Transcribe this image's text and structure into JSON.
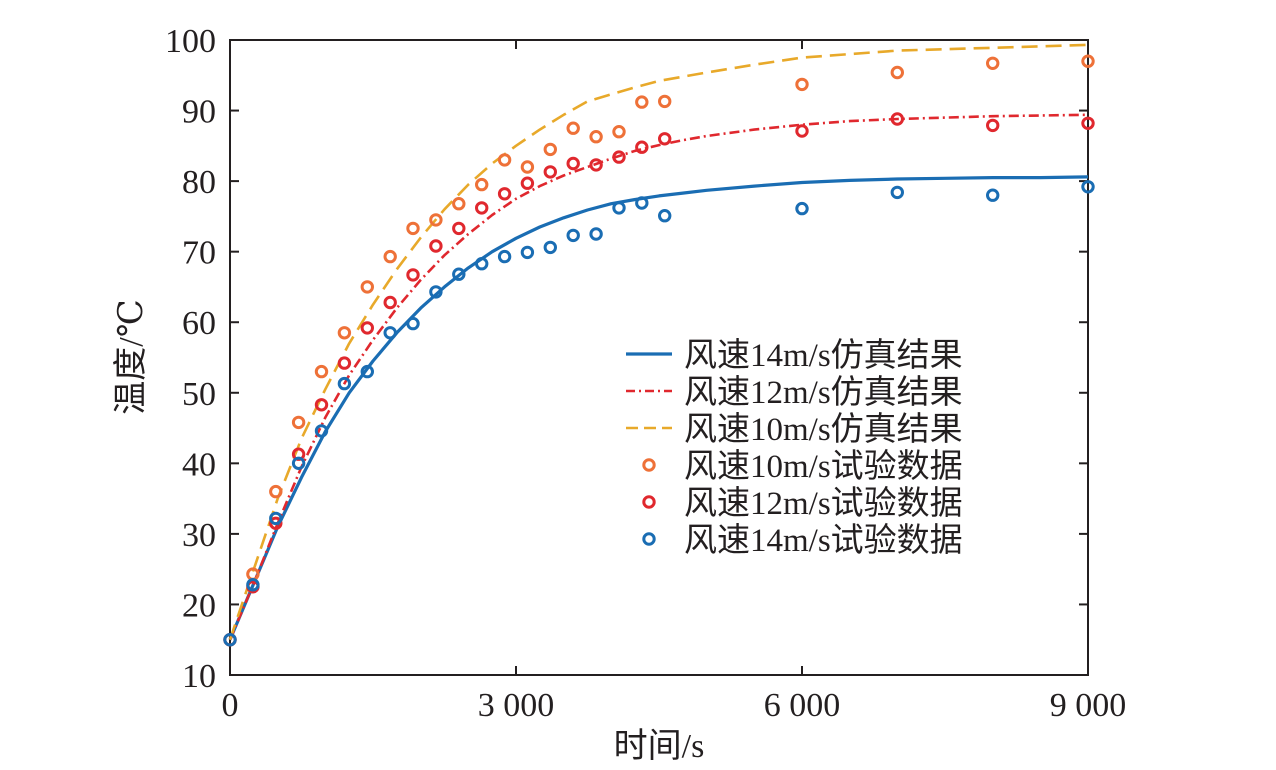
{
  "chart_data": {
    "type": "line",
    "xlabel": "时间/s",
    "ylabel": "温度/℃",
    "xlim": [
      0,
      9000
    ],
    "ylim": [
      10,
      100
    ],
    "xticks": [
      0,
      3000,
      6000,
      9000
    ],
    "xtick_labels": [
      "0",
      "3 000",
      "6 000",
      "9 000"
    ],
    "yticks": [
      10,
      20,
      30,
      40,
      50,
      60,
      70,
      80,
      90,
      100
    ],
    "ytick_labels": [
      "10",
      "20",
      "30",
      "40",
      "50",
      "60",
      "70",
      "80",
      "90",
      "100"
    ],
    "grid": false,
    "legend_position": "center-right",
    "series": [
      {
        "name": "风速14m/s仿真结果",
        "kind": "line",
        "style": "solid",
        "color": "#1a6db3",
        "x": [
          0,
          250,
          500,
          750,
          1000,
          1250,
          1500,
          1750,
          2000,
          2250,
          2500,
          2750,
          3000,
          3250,
          3500,
          3750,
          4000,
          4250,
          4500,
          4750,
          5000,
          5500,
          6000,
          6500,
          7000,
          7500,
          8000,
          8500,
          9000
        ],
        "y": [
          15.0,
          23.0,
          31.0,
          38.0,
          44.5,
          50.0,
          54.5,
          58.5,
          62.0,
          65.0,
          67.7,
          70.0,
          71.9,
          73.5,
          74.8,
          75.9,
          76.8,
          77.4,
          77.9,
          78.3,
          78.7,
          79.3,
          79.8,
          80.1,
          80.3,
          80.4,
          80.5,
          80.5,
          80.6
        ]
      },
      {
        "name": "风速12m/s仿真结果",
        "kind": "line",
        "style": "dashdot",
        "color": "#e0282e",
        "x": [
          0,
          250,
          500,
          750,
          1000,
          1250,
          1500,
          1750,
          2000,
          2250,
          2500,
          2750,
          3000,
          3250,
          3500,
          3750,
          4000,
          4250,
          4500,
          4750,
          5000,
          5500,
          6000,
          6500,
          7000,
          7500,
          8000,
          8500,
          9000
        ],
        "y": [
          15.0,
          23.0,
          31.5,
          39.5,
          46.5,
          52.5,
          57.5,
          62.0,
          66.0,
          69.5,
          72.5,
          75.2,
          77.5,
          79.3,
          80.8,
          82.0,
          83.2,
          84.3,
          85.1,
          85.8,
          86.4,
          87.3,
          88.0,
          88.5,
          88.8,
          89.0,
          89.2,
          89.3,
          89.4
        ]
      },
      {
        "name": "风速10m/s仿真结果",
        "kind": "line",
        "style": "dashed",
        "color": "#e8a92a",
        "x": [
          0,
          250,
          500,
          750,
          1000,
          1250,
          1500,
          1750,
          2000,
          2250,
          2500,
          2750,
          3000,
          3250,
          3500,
          3750,
          4000,
          4250,
          4500,
          4750,
          5000,
          5500,
          6000,
          6500,
          7000,
          7500,
          8000,
          8500,
          9000
        ],
        "y": [
          15.0,
          25.0,
          35.0,
          43.5,
          50.5,
          57.0,
          62.5,
          67.5,
          72.0,
          76.0,
          79.5,
          82.5,
          85.0,
          87.3,
          89.4,
          91.3,
          92.3,
          93.3,
          94.2,
          94.8,
          95.4,
          96.5,
          97.5,
          98.0,
          98.5,
          98.7,
          98.9,
          99.1,
          99.3
        ]
      },
      {
        "name": "风速10m/s试验数据",
        "kind": "scatter",
        "color": "#ee7138",
        "x": [
          0,
          240,
          480,
          720,
          960,
          1200,
          1440,
          1680,
          1920,
          2160,
          2400,
          2640,
          2880,
          3120,
          3360,
          3600,
          3840,
          4080,
          4320,
          4560,
          6000,
          7000,
          8000,
          9000
        ],
        "y": [
          15.0,
          24.3,
          36.0,
          45.8,
          53.0,
          58.5,
          65.0,
          69.3,
          73.3,
          74.5,
          76.8,
          79.5,
          83.0,
          82.0,
          84.5,
          87.5,
          86.3,
          87.0,
          91.2,
          91.3,
          93.7,
          95.4,
          96.7,
          97.0
        ]
      },
      {
        "name": "风速12m/s试验数据",
        "kind": "scatter",
        "color": "#e0282e",
        "x": [
          0,
          240,
          480,
          720,
          960,
          1200,
          1440,
          1680,
          1920,
          2160,
          2400,
          2640,
          2880,
          3120,
          3360,
          3600,
          3840,
          4080,
          4320,
          4560,
          6000,
          7000,
          8000,
          9000
        ],
        "y": [
          15.0,
          22.5,
          31.5,
          41.3,
          48.3,
          54.2,
          59.2,
          62.8,
          66.7,
          70.8,
          73.3,
          76.2,
          78.2,
          79.7,
          81.3,
          82.5,
          82.3,
          83.4,
          84.8,
          86.0,
          87.1,
          88.8,
          87.9,
          88.2
        ]
      },
      {
        "name": "风速14m/s试验数据",
        "kind": "scatter",
        "color": "#1a6db3",
        "x": [
          0,
          240,
          480,
          720,
          960,
          1200,
          1440,
          1680,
          1920,
          2160,
          2400,
          2640,
          2880,
          3120,
          3360,
          3600,
          3840,
          4080,
          4320,
          4560,
          6000,
          7000,
          8000,
          9000
        ],
        "y": [
          15.0,
          22.8,
          32.2,
          40.0,
          44.6,
          51.3,
          53.0,
          58.5,
          59.8,
          64.3,
          66.8,
          68.3,
          69.3,
          69.9,
          70.6,
          72.3,
          72.5,
          76.2,
          76.9,
          75.1,
          76.1,
          78.4,
          78.0,
          79.2
        ]
      }
    ]
  }
}
